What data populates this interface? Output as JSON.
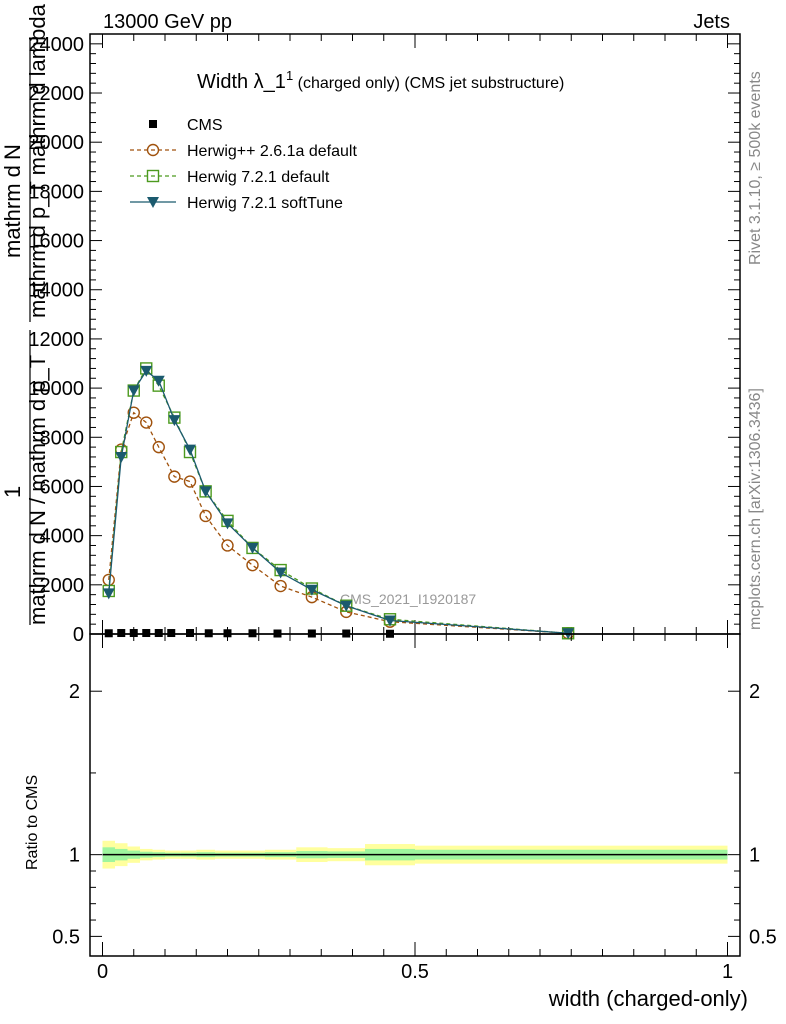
{
  "header": {
    "left": "13000 GeV pp",
    "right": "Jets"
  },
  "title_parts": {
    "main": "Width λ_1",
    "sup": "1",
    "rest": " (charged only) (CMS jet substructure)"
  },
  "side_labels": {
    "top": "Rivet 3.1.10, ≥ 500k events",
    "bottom": "mcplots.cern.ch [arXiv:1306.3436]"
  },
  "watermark": "CMS_2021_I1920187",
  "ylabel_main": {
    "numerator_a": "mathrm d",
    "numerator_b": "N",
    "denominator": "mathrm d p_T mathrm d lambda",
    "prefix": "1",
    "prefix_den": "mathrm d N / mathrm d p_T"
  },
  "ylabel_ratio": "Ratio to CMS",
  "xlabel": "width (charged-only)",
  "legend": [
    {
      "label": "CMS",
      "color": "#000000",
      "marker": "square-filled"
    },
    {
      "label": "Herwig++ 2.6.1a default",
      "color": "#a0520d",
      "marker": "circle-open",
      "dash": true
    },
    {
      "label": "Herwig 7.2.1 default",
      "color": "#4c9a1e",
      "marker": "square-open",
      "dash": true
    },
    {
      "label": "Herwig 7.2.1 softTune",
      "color": "#1b5a6e",
      "marker": "triangle-down",
      "dash": false
    }
  ],
  "chart_data": [
    {
      "type": "line",
      "xlim": [
        -0.02,
        1.02
      ],
      "ylim": [
        0,
        24400
      ],
      "yticks": [
        "0",
        "2000",
        "4000",
        "6000",
        "8000",
        "10000",
        "12000",
        "14000",
        "16000",
        "18000",
        "20000",
        "22000",
        "24000"
      ],
      "ytick_values": [
        0,
        2000,
        4000,
        6000,
        8000,
        10000,
        12000,
        14000,
        16000,
        18000,
        20000,
        22000,
        24000
      ],
      "series": [
        {
          "name": "CMS",
          "x": [
            0.01,
            0.03,
            0.05,
            0.07,
            0.09,
            0.11,
            0.14,
            0.17,
            0.2,
            0.24,
            0.28,
            0.335,
            0.39,
            0.46
          ],
          "y": [
            30,
            40,
            40,
            40,
            40,
            40,
            40,
            30,
            30,
            30,
            20,
            20,
            20,
            10
          ]
        },
        {
          "name": "Herwig++ 2.6.1a default",
          "x": [
            0.01,
            0.03,
            0.05,
            0.07,
            0.09,
            0.115,
            0.14,
            0.165,
            0.2,
            0.24,
            0.285,
            0.335,
            0.39,
            0.46,
            0.745
          ],
          "y": [
            2200,
            7500,
            9000,
            8600,
            7600,
            6400,
            6200,
            4800,
            3600,
            2800,
            1950,
            1500,
            900,
            500,
            30
          ]
        },
        {
          "name": "Herwig 7.2.1 default",
          "x": [
            0.01,
            0.03,
            0.05,
            0.07,
            0.09,
            0.115,
            0.14,
            0.165,
            0.2,
            0.24,
            0.285,
            0.335,
            0.39,
            0.46,
            0.745
          ],
          "y": [
            1750,
            7400,
            9900,
            10800,
            10100,
            8800,
            7400,
            5800,
            4600,
            3500,
            2600,
            1850,
            1150,
            600,
            30
          ]
        },
        {
          "name": "Herwig 7.2.1 softTune",
          "x": [
            0.01,
            0.03,
            0.05,
            0.07,
            0.09,
            0.115,
            0.14,
            0.165,
            0.2,
            0.24,
            0.285,
            0.335,
            0.39,
            0.46,
            0.745
          ],
          "y": [
            1650,
            7200,
            9900,
            10700,
            10300,
            8700,
            7500,
            5800,
            4500,
            3500,
            2500,
            1800,
            1150,
            550,
            30
          ]
        }
      ]
    },
    {
      "type": "area",
      "xlim": [
        -0.02,
        1.02
      ],
      "ylim": [
        0.38,
        2.35
      ],
      "yticks": [
        "0.5",
        "1",
        "2"
      ],
      "ytick_values": [
        0.5,
        1,
        2
      ],
      "xticks": [
        "0",
        "0.5",
        "1"
      ],
      "xtick_values": [
        0,
        0.5,
        1
      ],
      "bands": {
        "edges": [
          0,
          0.02,
          0.04,
          0.06,
          0.08,
          0.1,
          0.125,
          0.15,
          0.18,
          0.22,
          0.26,
          0.31,
          0.36,
          0.42,
          0.5,
          1.0
        ],
        "yellow_half_width": [
          0.085,
          0.07,
          0.05,
          0.035,
          0.03,
          0.025,
          0.025,
          0.03,
          0.025,
          0.025,
          0.03,
          0.045,
          0.04,
          0.065,
          0.055
        ],
        "green_half_width": [
          0.045,
          0.035,
          0.025,
          0.018,
          0.015,
          0.012,
          0.012,
          0.015,
          0.012,
          0.012,
          0.015,
          0.022,
          0.02,
          0.035,
          0.03
        ]
      },
      "colors": {
        "yellow": "#ffff9e",
        "green": "#9ef59e"
      },
      "reference": 1
    }
  ]
}
